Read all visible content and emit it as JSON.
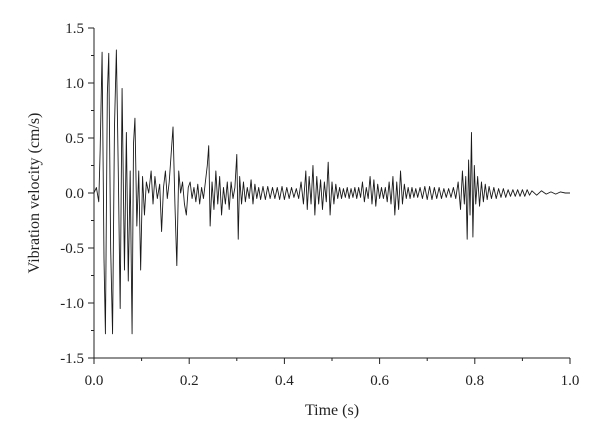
{
  "chart_data": {
    "type": "line",
    "title": "",
    "xlabel": "Time (s)",
    "ylabel": "Vibration velocity (cm/s)",
    "xlim": [
      0.0,
      1.0
    ],
    "ylim": [
      -1.5,
      1.5
    ],
    "x_ticks": [
      "0.0",
      "0.2",
      "0.4",
      "0.6",
      "0.8",
      "1.0"
    ],
    "y_ticks": [
      "1.5",
      "1.0",
      "0.5",
      "0.0",
      "-0.5",
      "-1.0",
      "-1.5"
    ],
    "grid": false,
    "legend": "none",
    "line_color": "#1a1a1a",
    "series": [
      {
        "values": [
          [
            0.0,
            0.0
          ],
          [
            0.005,
            0.05
          ],
          [
            0.01,
            -0.08
          ],
          [
            0.013,
            0.4
          ],
          [
            0.017,
            1.28
          ],
          [
            0.021,
            -0.6
          ],
          [
            0.024,
            -1.28
          ],
          [
            0.028,
            0.9
          ],
          [
            0.031,
            1.27
          ],
          [
            0.035,
            -0.5
          ],
          [
            0.039,
            -1.28
          ],
          [
            0.043,
            0.6
          ],
          [
            0.047,
            1.3
          ],
          [
            0.051,
            0.2
          ],
          [
            0.055,
            -1.05
          ],
          [
            0.059,
            0.95
          ],
          [
            0.064,
            -0.7
          ],
          [
            0.068,
            0.55
          ],
          [
            0.072,
            -0.8
          ],
          [
            0.076,
            0.2
          ],
          [
            0.08,
            -1.28
          ],
          [
            0.083,
            0.45
          ],
          [
            0.086,
            0.68
          ],
          [
            0.09,
            -0.3
          ],
          [
            0.094,
            0.2
          ],
          [
            0.098,
            -0.7
          ],
          [
            0.102,
            0.15
          ],
          [
            0.106,
            -0.2
          ],
          [
            0.11,
            0.1
          ],
          [
            0.115,
            0.0
          ],
          [
            0.12,
            0.2
          ],
          [
            0.124,
            -0.1
          ],
          [
            0.128,
            0.15
          ],
          [
            0.133,
            -0.05
          ],
          [
            0.138,
            0.08
          ],
          [
            0.142,
            -0.35
          ],
          [
            0.146,
            0.05
          ],
          [
            0.15,
            0.2
          ],
          [
            0.154,
            -0.05
          ],
          [
            0.158,
            0.1
          ],
          [
            0.162,
            0.35
          ],
          [
            0.166,
            0.6
          ],
          [
            0.17,
            -0.1
          ],
          [
            0.174,
            -0.66
          ],
          [
            0.178,
            0.2
          ],
          [
            0.182,
            0.0
          ],
          [
            0.186,
            0.1
          ],
          [
            0.19,
            -0.1
          ],
          [
            0.194,
            -0.2
          ],
          [
            0.198,
            0.05
          ],
          [
            0.202,
            0.1
          ],
          [
            0.206,
            -0.05
          ],
          [
            0.21,
            0.05
          ],
          [
            0.214,
            -0.08
          ],
          [
            0.218,
            0.08
          ],
          [
            0.222,
            -0.1
          ],
          [
            0.226,
            0.05
          ],
          [
            0.23,
            -0.05
          ],
          [
            0.234,
            0.1
          ],
          [
            0.238,
            0.25
          ],
          [
            0.241,
            0.43
          ],
          [
            0.244,
            -0.3
          ],
          [
            0.248,
            0.1
          ],
          [
            0.252,
            -0.15
          ],
          [
            0.256,
            0.2
          ],
          [
            0.26,
            -0.1
          ],
          [
            0.264,
            0.15
          ],
          [
            0.268,
            -0.2
          ],
          [
            0.272,
            0.05
          ],
          [
            0.276,
            -0.1
          ],
          [
            0.28,
            0.1
          ],
          [
            0.284,
            -0.15
          ],
          [
            0.288,
            0.1
          ],
          [
            0.292,
            -0.05
          ],
          [
            0.296,
            0.05
          ],
          [
            0.3,
            0.35
          ],
          [
            0.303,
            -0.42
          ],
          [
            0.306,
            0.15
          ],
          [
            0.31,
            -0.1
          ],
          [
            0.314,
            0.1
          ],
          [
            0.318,
            -0.08
          ],
          [
            0.322,
            0.05
          ],
          [
            0.326,
            -0.05
          ],
          [
            0.33,
            0.12
          ],
          [
            0.334,
            -0.1
          ],
          [
            0.338,
            0.08
          ],
          [
            0.342,
            -0.05
          ],
          [
            0.346,
            0.05
          ],
          [
            0.35,
            -0.06
          ],
          [
            0.355,
            0.06
          ],
          [
            0.36,
            -0.06
          ],
          [
            0.365,
            0.06
          ],
          [
            0.37,
            -0.05
          ],
          [
            0.375,
            0.05
          ],
          [
            0.38,
            -0.05
          ],
          [
            0.385,
            0.05
          ],
          [
            0.39,
            -0.06
          ],
          [
            0.395,
            0.06
          ],
          [
            0.4,
            -0.06
          ],
          [
            0.405,
            0.05
          ],
          [
            0.41,
            -0.05
          ],
          [
            0.415,
            0.05
          ],
          [
            0.42,
            -0.04
          ],
          [
            0.425,
            0.04
          ],
          [
            0.43,
            -0.05
          ],
          [
            0.435,
            0.1
          ],
          [
            0.44,
            -0.1
          ],
          [
            0.445,
            0.2
          ],
          [
            0.448,
            -0.15
          ],
          [
            0.452,
            0.15
          ],
          [
            0.456,
            -0.1
          ],
          [
            0.46,
            0.25
          ],
          [
            0.464,
            -0.2
          ],
          [
            0.468,
            0.15
          ],
          [
            0.472,
            -0.1
          ],
          [
            0.476,
            0.12
          ],
          [
            0.48,
            -0.15
          ],
          [
            0.484,
            0.1
          ],
          [
            0.488,
            -0.08
          ],
          [
            0.492,
            0.28
          ],
          [
            0.496,
            -0.2
          ],
          [
            0.5,
            0.1
          ],
          [
            0.504,
            -0.1
          ],
          [
            0.508,
            0.08
          ],
          [
            0.512,
            -0.05
          ],
          [
            0.516,
            0.05
          ],
          [
            0.52,
            -0.05
          ],
          [
            0.524,
            0.04
          ],
          [
            0.528,
            -0.04
          ],
          [
            0.532,
            0.05
          ],
          [
            0.536,
            -0.05
          ],
          [
            0.54,
            0.04
          ],
          [
            0.544,
            -0.04
          ],
          [
            0.548,
            0.05
          ],
          [
            0.552,
            -0.05
          ],
          [
            0.556,
            0.05
          ],
          [
            0.56,
            -0.04
          ],
          [
            0.564,
            0.1
          ],
          [
            0.568,
            -0.08
          ],
          [
            0.572,
            0.05
          ],
          [
            0.576,
            -0.05
          ],
          [
            0.58,
            0.15
          ],
          [
            0.584,
            -0.1
          ],
          [
            0.588,
            0.12
          ],
          [
            0.592,
            -0.12
          ],
          [
            0.596,
            0.08
          ],
          [
            0.6,
            -0.05
          ],
          [
            0.604,
            0.05
          ],
          [
            0.608,
            -0.05
          ],
          [
            0.612,
            0.05
          ],
          [
            0.616,
            -0.08
          ],
          [
            0.62,
            0.1
          ],
          [
            0.624,
            -0.1
          ],
          [
            0.628,
            0.15
          ],
          [
            0.632,
            -0.2
          ],
          [
            0.636,
            0.1
          ],
          [
            0.64,
            -0.15
          ],
          [
            0.644,
            0.2
          ],
          [
            0.648,
            -0.1
          ],
          [
            0.652,
            0.08
          ],
          [
            0.656,
            -0.05
          ],
          [
            0.66,
            0.05
          ],
          [
            0.664,
            -0.05
          ],
          [
            0.668,
            0.05
          ],
          [
            0.672,
            -0.04
          ],
          [
            0.676,
            0.04
          ],
          [
            0.68,
            -0.04
          ],
          [
            0.685,
            0.05
          ],
          [
            0.69,
            -0.05
          ],
          [
            0.695,
            0.06
          ],
          [
            0.7,
            -0.06
          ],
          [
            0.705,
            0.06
          ],
          [
            0.71,
            -0.06
          ],
          [
            0.715,
            0.05
          ],
          [
            0.72,
            -0.05
          ],
          [
            0.725,
            0.05
          ],
          [
            0.73,
            -0.05
          ],
          [
            0.735,
            0.04
          ],
          [
            0.74,
            -0.04
          ],
          [
            0.745,
            0.04
          ],
          [
            0.75,
            -0.04
          ],
          [
            0.755,
            0.05
          ],
          [
            0.76,
            -0.05
          ],
          [
            0.765,
            0.1
          ],
          [
            0.77,
            -0.15
          ],
          [
            0.774,
            0.2
          ],
          [
            0.778,
            -0.1
          ],
          [
            0.781,
            0.15
          ],
          [
            0.784,
            -0.42
          ],
          [
            0.787,
            0.3
          ],
          [
            0.79,
            -0.2
          ],
          [
            0.793,
            0.55
          ],
          [
            0.796,
            -0.4
          ],
          [
            0.799,
            0.25
          ],
          [
            0.802,
            -0.1
          ],
          [
            0.806,
            0.15
          ],
          [
            0.81,
            -0.12
          ],
          [
            0.814,
            0.1
          ],
          [
            0.818,
            -0.08
          ],
          [
            0.822,
            0.08
          ],
          [
            0.826,
            -0.06
          ],
          [
            0.83,
            0.06
          ],
          [
            0.835,
            -0.05
          ],
          [
            0.84,
            0.05
          ],
          [
            0.845,
            -0.05
          ],
          [
            0.85,
            0.04
          ],
          [
            0.855,
            -0.04
          ],
          [
            0.86,
            0.04
          ],
          [
            0.865,
            -0.04
          ],
          [
            0.87,
            0.03
          ],
          [
            0.875,
            -0.03
          ],
          [
            0.88,
            0.03
          ],
          [
            0.885,
            -0.03
          ],
          [
            0.89,
            0.03
          ],
          [
            0.895,
            -0.03
          ],
          [
            0.9,
            0.03
          ],
          [
            0.905,
            -0.03
          ],
          [
            0.91,
            0.03
          ],
          [
            0.915,
            -0.02
          ],
          [
            0.92,
            0.02
          ],
          [
            0.93,
            -0.02
          ],
          [
            0.94,
            0.02
          ],
          [
            0.95,
            -0.01
          ],
          [
            0.96,
            0.01
          ],
          [
            0.97,
            -0.01
          ],
          [
            0.98,
            0.01
          ],
          [
            0.99,
            0.0
          ],
          [
            1.0,
            0.0
          ]
        ]
      }
    ]
  }
}
